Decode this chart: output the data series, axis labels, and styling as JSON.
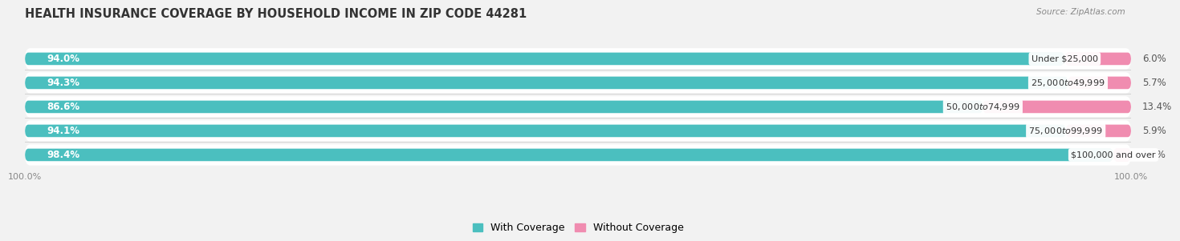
{
  "title": "HEALTH INSURANCE COVERAGE BY HOUSEHOLD INCOME IN ZIP CODE 44281",
  "source": "Source: ZipAtlas.com",
  "categories": [
    "Under $25,000",
    "$25,000 to $49,999",
    "$50,000 to $74,999",
    "$75,000 to $99,999",
    "$100,000 and over"
  ],
  "with_coverage": [
    94.0,
    94.3,
    86.6,
    94.1,
    98.4
  ],
  "without_coverage": [
    6.0,
    5.7,
    13.4,
    5.9,
    1.6
  ],
  "color_with": "#4BBFBF",
  "color_without": "#F08CB0",
  "color_with_light": "#7ACFCF",
  "bg_color": "#f2f2f2",
  "bar_bg_color": "#e0e0e0",
  "row_bg_color": "#ebebeb",
  "title_fontsize": 10.5,
  "label_fontsize": 8.5,
  "tick_fontsize": 8,
  "legend_fontsize": 9,
  "bar_height": 0.52,
  "xlim": [
    0,
    100
  ]
}
